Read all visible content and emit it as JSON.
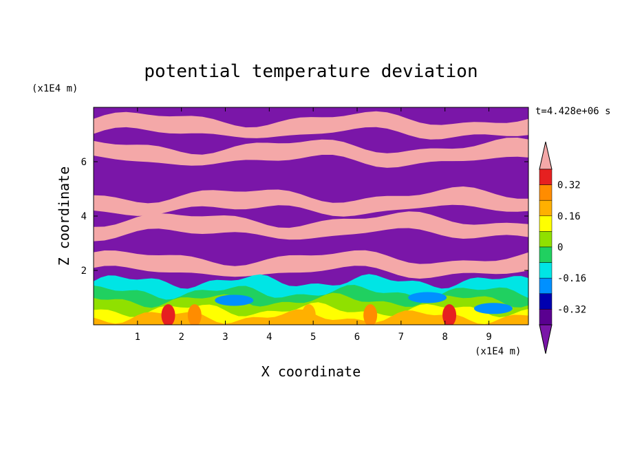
{
  "chart_data": {
    "type": "heatmap",
    "title": "potential temperature deviation",
    "time_label": "t=4.428e+06 s",
    "xlabel": "X coordinate",
    "ylabel": "Z coordinate",
    "x_unit": "(x1E4 m)",
    "y_unit": "(x1E4 m)",
    "xlim": [
      0,
      9.9
    ],
    "ylim": [
      0,
      8
    ],
    "x_ticks": [
      1,
      2,
      3,
      4,
      5,
      6,
      7,
      8,
      9
    ],
    "y_ticks": [
      2,
      4,
      6
    ],
    "colorbar": {
      "levels": [
        -0.4,
        -0.32,
        -0.24,
        -0.16,
        -0.08,
        0,
        0.08,
        0.16,
        0.24,
        0.32,
        0.4
      ],
      "tick_labels": [
        "0.32",
        "0.16",
        "0",
        "-0.16",
        "-0.32"
      ],
      "tick_values": [
        0.32,
        0.16,
        0,
        -0.16,
        -0.32
      ],
      "colors": [
        "#e62020",
        "#ff8c00",
        "#ffb000",
        "#ffff00",
        "#90e000",
        "#20d060",
        "#00e5e5",
        "#0090ff",
        "#0000b0",
        "#5a0090"
      ],
      "over_color": "#f4a8a8",
      "under_color": "#7a16a8"
    },
    "field_description_levels": {
      "pink_bands_z": [
        7.3,
        6.3,
        4.5,
        3.6,
        2.2
      ],
      "purple_bands_z": [
        6.8,
        5.6,
        4.2,
        3.0,
        2.0
      ]
    }
  }
}
